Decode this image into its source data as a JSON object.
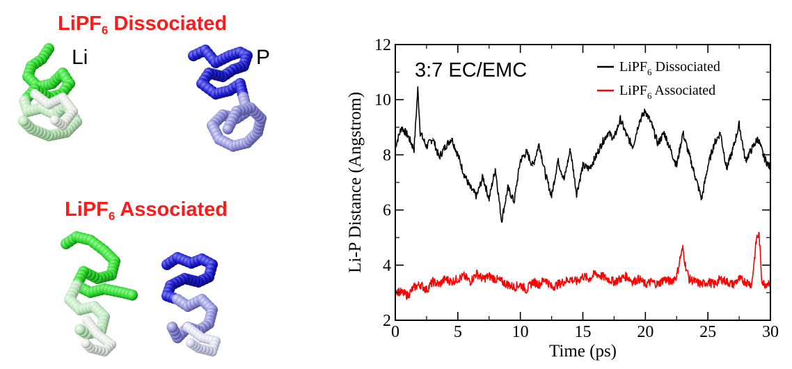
{
  "panel_left": {
    "dissociated_title": {
      "text": "LiPF",
      "sub": "6",
      "rest": " Dissociated"
    },
    "associated_title": {
      "text": "LiPF",
      "sub": "6",
      "rest": " Associated"
    },
    "label_li": "Li",
    "label_p": "P"
  },
  "colors": {
    "title_red": "#ff1a1a",
    "li_green": "#22dd22",
    "p_blue": "#1a1ad6",
    "dissociated_line": "#000000",
    "associated_line": "#ff0000"
  },
  "chart_data": {
    "type": "line",
    "annotation": "3:7 EC/EMC",
    "xlabel": "Time (ps)",
    "ylabel": "Li-P Distance (Angstrom)",
    "xlim": [
      0,
      30
    ],
    "ylim": [
      2,
      12
    ],
    "xticks": [
      0,
      5,
      10,
      15,
      20,
      25,
      30
    ],
    "yticks": [
      2,
      4,
      6,
      8,
      10,
      12
    ],
    "legend_position": "top-right",
    "series": [
      {
        "name": "LiPF6 Dissociated",
        "legend_label": {
          "text": "LiPF",
          "sub": "6",
          "rest": " Dissociated"
        },
        "color": "#000000",
        "x": [
          0,
          0.5,
          1,
          1.5,
          1.8,
          2,
          2.5,
          3,
          3.5,
          4,
          4.5,
          5,
          5.5,
          6,
          6.5,
          7,
          7.5,
          8,
          8.5,
          9,
          9.5,
          10,
          10.5,
          11,
          11.5,
          12,
          12.5,
          13,
          13.5,
          14,
          14.5,
          15,
          15.5,
          16,
          16.5,
          17,
          17.5,
          18,
          18.5,
          19,
          19.5,
          20,
          20.5,
          21,
          21.5,
          22,
          22.5,
          23,
          23.5,
          24,
          24.5,
          25,
          25.5,
          26,
          26.5,
          27,
          27.5,
          28,
          28.5,
          29,
          29.5,
          30
        ],
        "values": [
          8.3,
          9.0,
          8.7,
          8.2,
          10.4,
          8.8,
          8.3,
          8.6,
          7.9,
          8.3,
          8.6,
          8.0,
          7.3,
          6.8,
          6.5,
          7.2,
          6.4,
          7.5,
          5.6,
          6.8,
          6.3,
          7.8,
          8.1,
          7.6,
          8.4,
          7.3,
          6.5,
          7.8,
          7.1,
          8.2,
          6.6,
          7.6,
          7.5,
          7.9,
          8.4,
          8.8,
          8.6,
          9.3,
          8.7,
          8.3,
          9.2,
          9.6,
          9.1,
          8.4,
          8.8,
          8.2,
          7.6,
          8.8,
          8.0,
          7.2,
          6.4,
          7.6,
          8.4,
          8.8,
          7.5,
          8.2,
          9.1,
          7.8,
          8.2,
          8.6,
          7.9,
          7.5
        ]
      },
      {
        "name": "LiPF6 Associated",
        "legend_label": {
          "text": "LiPF",
          "sub": "6",
          "rest": " Associated"
        },
        "color": "#ff0000",
        "x": [
          0,
          0.5,
          1,
          1.5,
          2,
          2.5,
          3,
          3.5,
          4,
          4.5,
          5,
          5.5,
          6,
          6.5,
          7,
          7.5,
          8,
          8.5,
          9,
          9.5,
          10,
          10.5,
          11,
          11.5,
          12,
          12.5,
          13,
          13.5,
          14,
          14.5,
          15,
          15.5,
          16,
          16.5,
          17,
          17.5,
          18,
          18.5,
          19,
          19.5,
          20,
          20.5,
          21,
          21.5,
          22,
          22.5,
          22.8,
          23,
          23.2,
          23.5,
          24,
          24.5,
          25,
          25.5,
          26,
          26.5,
          27,
          27.5,
          28,
          28.5,
          28.9,
          29.1,
          29.3,
          29.5,
          30
        ],
        "values": [
          3.1,
          3.0,
          2.9,
          3.2,
          3.3,
          3.1,
          3.4,
          3.3,
          3.5,
          3.4,
          3.5,
          3.6,
          3.4,
          3.7,
          3.5,
          3.6,
          3.5,
          3.4,
          3.3,
          3.2,
          3.3,
          3.1,
          3.4,
          3.3,
          3.5,
          3.2,
          3.3,
          3.4,
          3.5,
          3.4,
          3.6,
          3.5,
          3.7,
          3.6,
          3.5,
          3.4,
          3.5,
          3.6,
          3.4,
          3.5,
          3.3,
          3.4,
          3.3,
          3.5,
          3.4,
          3.6,
          4.3,
          4.6,
          4.0,
          3.5,
          3.4,
          3.3,
          3.4,
          3.3,
          3.5,
          3.4,
          3.3,
          3.5,
          3.4,
          3.3,
          5.0,
          5.1,
          3.5,
          3.3,
          3.4
        ]
      }
    ]
  }
}
